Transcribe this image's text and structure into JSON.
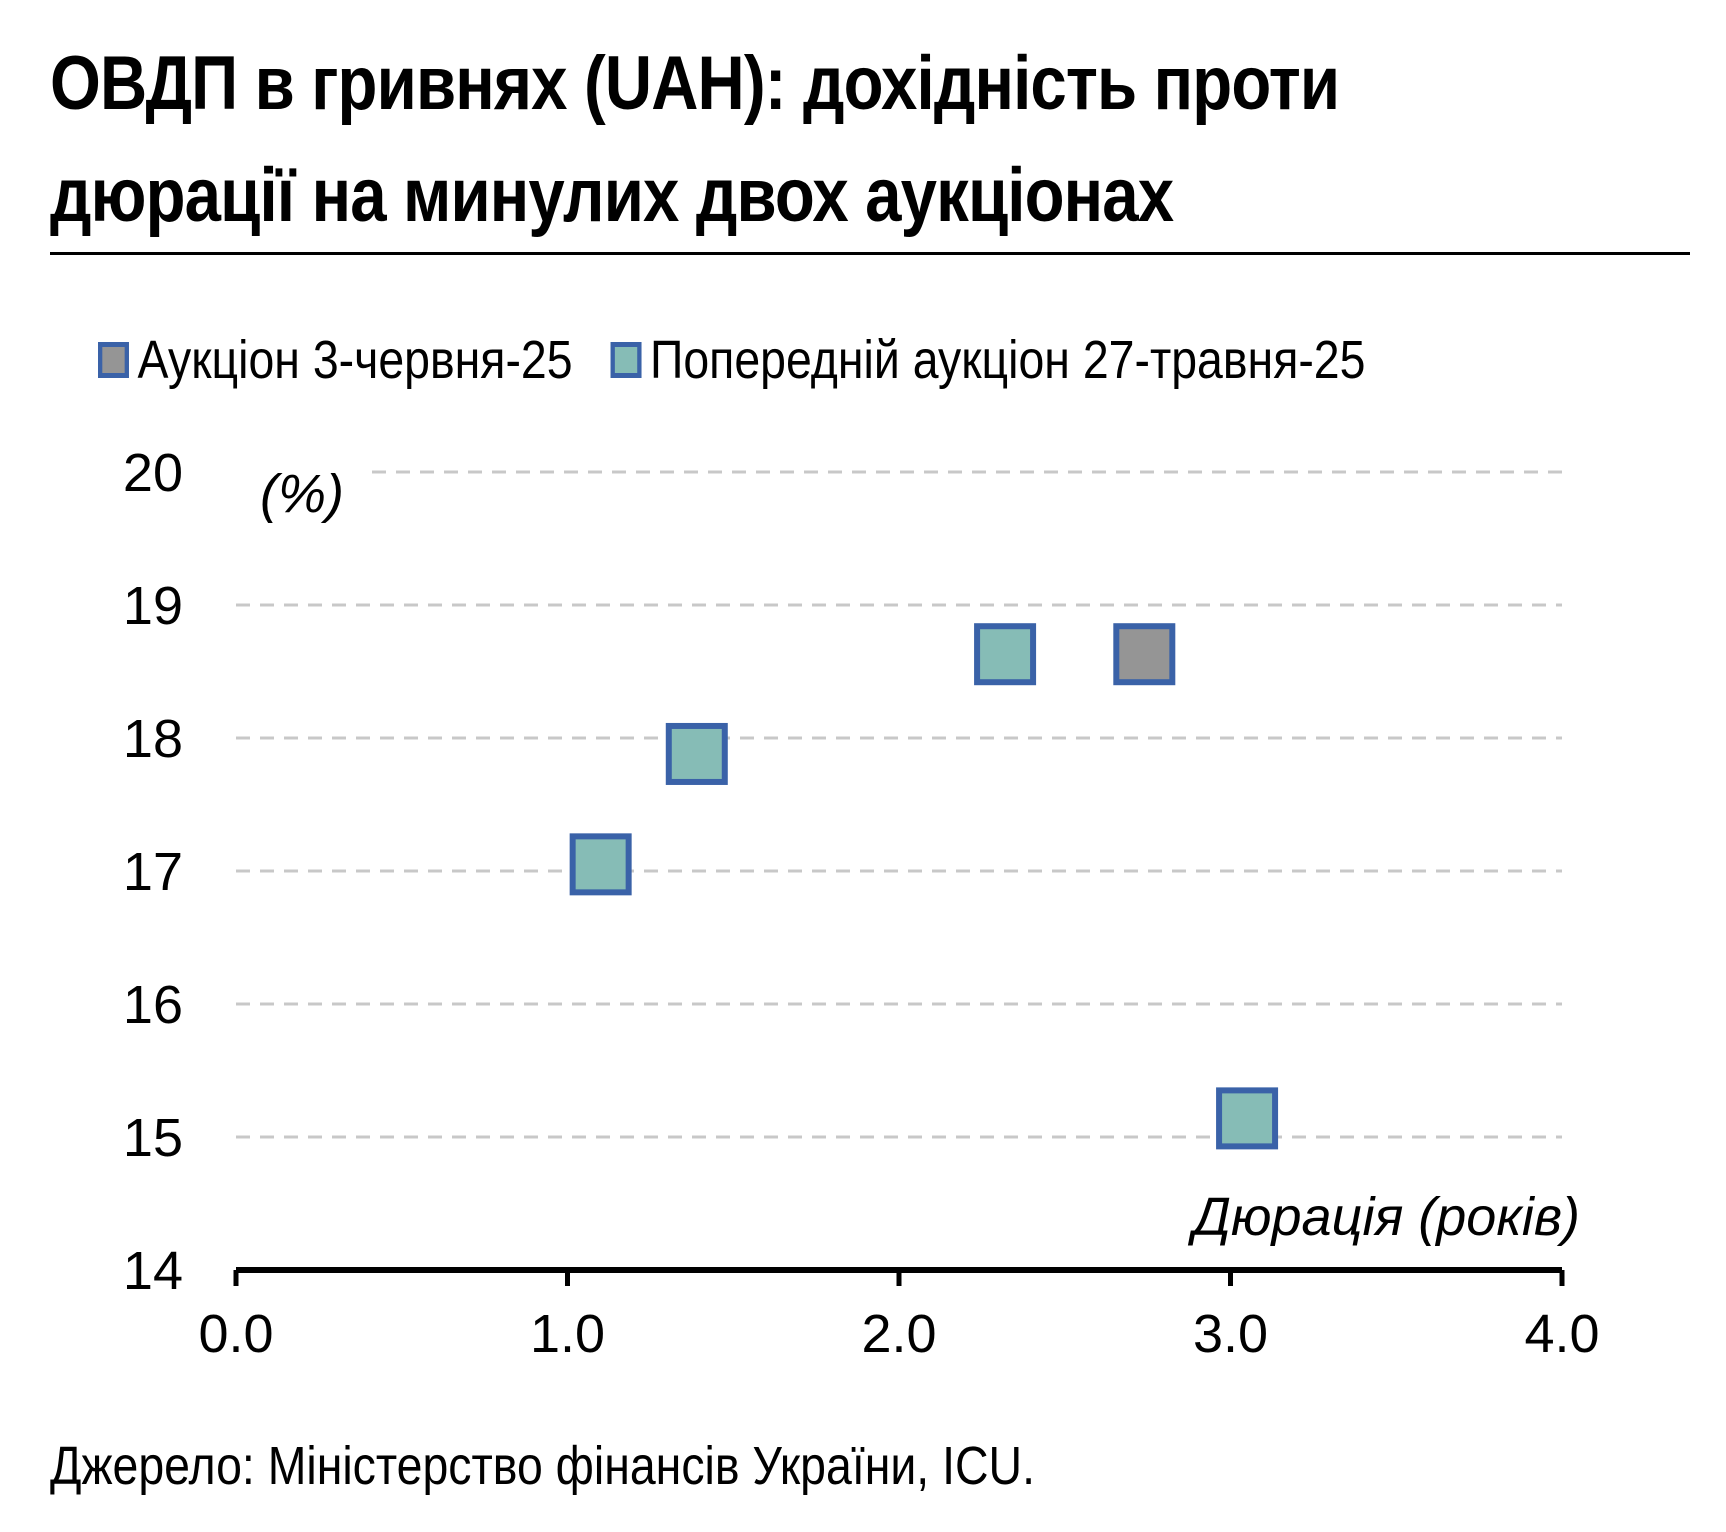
{
  "title": "ОВДП в гривнях (UAH): дохідність проти дюрації на минулих двох аукціонах",
  "source": "Джерело: Міністерство фінансів України, ICU.",
  "colors": {
    "current_fill": "#959595",
    "previous_fill": "#86bcb6",
    "marker_border": "#3a62a8",
    "grid": "#c8c8c8",
    "axis": "#000000"
  },
  "chart_data": {
    "type": "scatter",
    "xlabel": "Дюрація (років)",
    "ylabel": "(%)",
    "xlim": [
      0.0,
      4.0
    ],
    "ylim": [
      14,
      20
    ],
    "x_ticks": [
      "0.0",
      "1.0",
      "2.0",
      "3.0",
      "4.0"
    ],
    "y_ticks": [
      "14",
      "15",
      "16",
      "17",
      "18",
      "19",
      "20"
    ],
    "grid": "horizontal dashed",
    "legend_position": "top-left",
    "series": [
      {
        "name": "Аукціон 3-червня-25",
        "color": "#959595",
        "points": [
          {
            "x": 2.74,
            "y": 18.63
          }
        ]
      },
      {
        "name": "Попередній аукціон 27-травня-25",
        "color": "#86bcb6",
        "points": [
          {
            "x": 1.1,
            "y": 17.05
          },
          {
            "x": 1.39,
            "y": 17.88
          },
          {
            "x": 2.32,
            "y": 18.63
          },
          {
            "x": 3.05,
            "y": 15.14
          }
        ]
      }
    ]
  }
}
